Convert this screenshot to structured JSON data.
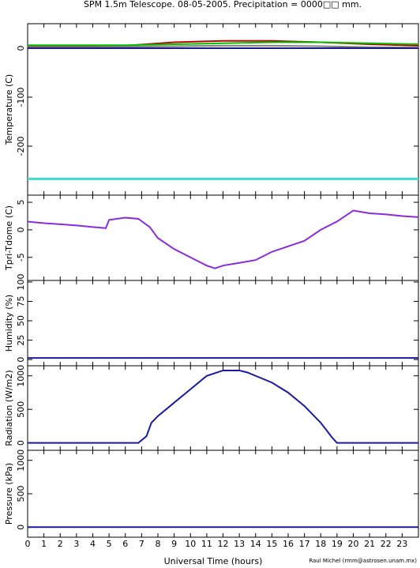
{
  "title": "SPM 1.5m Telescope. 08-05-2005. Precipitation = 0000□□ mm.",
  "xlabel": "Universal Time (hours)",
  "credit": "Raul Michel (rmm@astrosen.unam.mx)",
  "chart_data": [
    {
      "type": "line",
      "ylabel": "Temperature (C)",
      "ylim": [
        -300,
        50
      ],
      "yticks": [
        0,
        -100,
        -200
      ],
      "x": [
        0,
        3,
        6,
        9,
        12,
        15,
        18,
        21,
        24
      ],
      "series": [
        {
          "color": "#c00000",
          "values": [
            3,
            3,
            5,
            12,
            15,
            15,
            12,
            8,
            5
          ]
        },
        {
          "color": "#00c000",
          "values": [
            6,
            6,
            6,
            8,
            10,
            12,
            12,
            10,
            8
          ]
        },
        {
          "color": "#808080",
          "values": [
            2,
            2,
            3,
            4,
            5,
            5,
            4,
            2,
            1
          ]
        },
        {
          "color": "#1a1a8c",
          "values": [
            0,
            0,
            0,
            0,
            0,
            0,
            0,
            0,
            0
          ]
        },
        {
          "color": "#40e0d0",
          "values": [
            -267,
            -267,
            -267,
            -267,
            -267,
            -267,
            -267,
            -267,
            -267
          ]
        }
      ]
    },
    {
      "type": "line",
      "ylabel": "Tpri-Tdome (C)",
      "ylim": [
        -9.2,
        6.3
      ],
      "yticks": [
        5,
        0,
        -5
      ],
      "x": [
        0,
        1,
        2,
        3,
        4,
        4.8,
        5,
        6,
        6.8,
        7.5,
        8,
        9,
        10,
        11,
        11.5,
        12,
        13,
        14,
        15,
        16,
        17,
        18,
        19,
        20,
        21,
        22,
        23,
        24
      ],
      "series": [
        {
          "color": "#8a2be2",
          "values": [
            1.5,
            1.2,
            1,
            0.8,
            0.5,
            0.3,
            1.8,
            2.2,
            2,
            0.5,
            -1.5,
            -3.5,
            -5,
            -6.5,
            -7,
            -6.5,
            -6,
            -5.5,
            -4,
            -3,
            -2,
            0,
            1.5,
            3.5,
            3,
            2.8,
            2.5,
            2.3
          ]
        }
      ]
    },
    {
      "type": "line",
      "ylabel": "Humidity (%)",
      "ylim": [
        -8,
        102
      ],
      "yticks": [
        0,
        25,
        50,
        75,
        100
      ],
      "x": [
        0,
        24
      ],
      "series": [
        {
          "color": "#1a1aa0",
          "values": [
            2,
            2
          ]
        }
      ]
    },
    {
      "type": "line",
      "ylabel": "Radiation (W/m2)",
      "ylim": [
        -110,
        1150
      ],
      "yticks": [
        0,
        500,
        1000
      ],
      "x": [
        0,
        6.8,
        7.3,
        7.6,
        8,
        9,
        10,
        11,
        12,
        13,
        13.5,
        14,
        15,
        16,
        17,
        18,
        18.7,
        19,
        24
      ],
      "series": [
        {
          "color": "#1a1aa0",
          "values": [
            0,
            0,
            100,
            300,
            400,
            600,
            800,
            1000,
            1080,
            1080,
            1050,
            1000,
            900,
            750,
            550,
            300,
            80,
            0,
            0
          ]
        }
      ]
    },
    {
      "type": "line",
      "ylabel": "Pressure (kPa)",
      "ylim": [
        -150,
        1150
      ],
      "yticks": [
        0,
        500,
        1000
      ],
      "x": [
        0,
        24
      ],
      "series": [
        {
          "color": "#1a1aa0",
          "values": [
            0,
            0
          ]
        }
      ],
      "xlim": [
        0,
        24
      ],
      "xticks": [
        0,
        1,
        2,
        3,
        4,
        5,
        6,
        7,
        8,
        9,
        10,
        11,
        12,
        13,
        14,
        15,
        16,
        17,
        18,
        19,
        20,
        21,
        22,
        23
      ]
    }
  ]
}
